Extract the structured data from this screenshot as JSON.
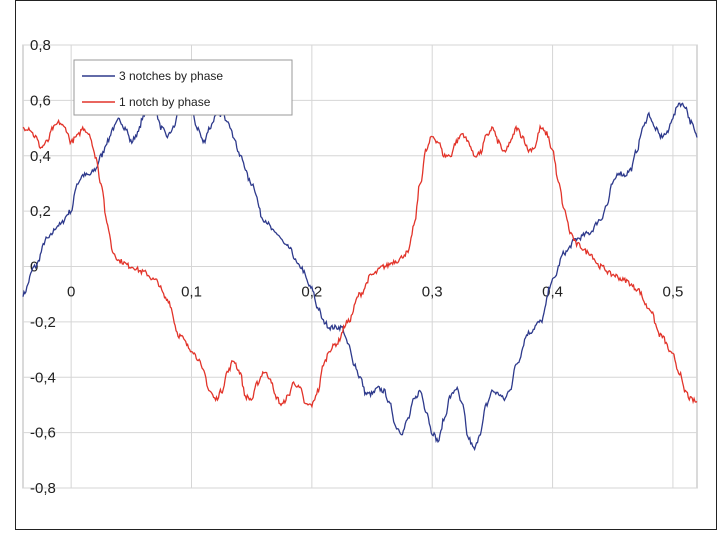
{
  "chart_data": {
    "type": "line",
    "title": "",
    "xlabel": "",
    "ylabel": "",
    "xlim": [
      -0.04,
      0.52
    ],
    "ylim": [
      -0.8,
      0.8
    ],
    "grid": true,
    "legend_position": "top-left",
    "x_ticks": [
      "0",
      "0,1",
      "0,2",
      "0,3",
      "0,4",
      "0,5"
    ],
    "x_tick_values": [
      0,
      0.1,
      0.2,
      0.3,
      0.4,
      0.5
    ],
    "y_ticks": [
      "0,8",
      "0,6",
      "0,4",
      "0,2",
      "0",
      "-0,2",
      "-0,4",
      "-0,6",
      "-0,8"
    ],
    "y_tick_values": [
      0.8,
      0.6,
      0.4,
      0.2,
      0,
      -0.2,
      -0.4,
      -0.6,
      -0.8
    ],
    "series": [
      {
        "name": "3 notches by phase",
        "color": "#2e3a8c",
        "x": [
          -0.04,
          -0.03,
          -0.02,
          -0.01,
          0.0,
          0.005,
          0.01,
          0.015,
          0.02,
          0.025,
          0.03,
          0.035,
          0.04,
          0.045,
          0.05,
          0.055,
          0.06,
          0.065,
          0.07,
          0.075,
          0.08,
          0.085,
          0.09,
          0.095,
          0.1,
          0.105,
          0.11,
          0.115,
          0.12,
          0.125,
          0.13,
          0.135,
          0.14,
          0.15,
          0.16,
          0.17,
          0.18,
          0.19,
          0.2,
          0.205,
          0.21,
          0.215,
          0.22,
          0.225,
          0.23,
          0.235,
          0.24,
          0.245,
          0.25,
          0.255,
          0.26,
          0.265,
          0.27,
          0.275,
          0.28,
          0.285,
          0.29,
          0.295,
          0.3,
          0.305,
          0.31,
          0.315,
          0.32,
          0.325,
          0.33,
          0.335,
          0.34,
          0.345,
          0.35,
          0.355,
          0.36,
          0.365,
          0.37,
          0.38,
          0.39,
          0.4,
          0.41,
          0.42,
          0.43,
          0.44,
          0.445,
          0.45,
          0.455,
          0.46,
          0.465,
          0.47,
          0.475,
          0.48,
          0.485,
          0.49,
          0.495,
          0.5,
          0.505,
          0.51,
          0.515,
          0.52
        ],
        "y": [
          -0.1,
          0.0,
          0.1,
          0.15,
          0.2,
          0.3,
          0.33,
          0.33,
          0.35,
          0.4,
          0.45,
          0.5,
          0.53,
          0.5,
          0.45,
          0.48,
          0.54,
          0.58,
          0.56,
          0.5,
          0.47,
          0.5,
          0.57,
          0.58,
          0.56,
          0.5,
          0.45,
          0.5,
          0.54,
          0.55,
          0.53,
          0.47,
          0.4,
          0.3,
          0.17,
          0.12,
          0.07,
          0.0,
          -0.08,
          -0.15,
          -0.2,
          -0.22,
          -0.22,
          -0.22,
          -0.28,
          -0.35,
          -0.4,
          -0.46,
          -0.46,
          -0.44,
          -0.45,
          -0.5,
          -0.58,
          -0.6,
          -0.55,
          -0.48,
          -0.45,
          -0.52,
          -0.6,
          -0.63,
          -0.55,
          -0.47,
          -0.44,
          -0.5,
          -0.62,
          -0.66,
          -0.6,
          -0.5,
          -0.45,
          -0.46,
          -0.48,
          -0.44,
          -0.35,
          -0.24,
          -0.2,
          -0.05,
          0.05,
          0.1,
          0.12,
          0.17,
          0.22,
          0.3,
          0.34,
          0.33,
          0.35,
          0.42,
          0.5,
          0.55,
          0.5,
          0.47,
          0.48,
          0.54,
          0.59,
          0.58,
          0.52,
          0.47
        ]
      },
      {
        "name": "1 notch by phase",
        "color": "#e2342a",
        "x": [
          -0.04,
          -0.035,
          -0.03,
          -0.025,
          -0.02,
          -0.015,
          -0.01,
          -0.005,
          0.0,
          0.005,
          0.01,
          0.015,
          0.02,
          0.025,
          0.03,
          0.035,
          0.04,
          0.05,
          0.06,
          0.07,
          0.08,
          0.09,
          0.1,
          0.105,
          0.11,
          0.115,
          0.12,
          0.125,
          0.13,
          0.135,
          0.14,
          0.145,
          0.15,
          0.155,
          0.16,
          0.165,
          0.17,
          0.175,
          0.18,
          0.185,
          0.19,
          0.195,
          0.2,
          0.205,
          0.21,
          0.215,
          0.22,
          0.23,
          0.24,
          0.25,
          0.26,
          0.27,
          0.28,
          0.285,
          0.29,
          0.295,
          0.3,
          0.305,
          0.31,
          0.315,
          0.32,
          0.325,
          0.33,
          0.335,
          0.34,
          0.345,
          0.35,
          0.355,
          0.36,
          0.365,
          0.37,
          0.375,
          0.38,
          0.385,
          0.39,
          0.395,
          0.4,
          0.405,
          0.41,
          0.415,
          0.42,
          0.43,
          0.44,
          0.45,
          0.46,
          0.47,
          0.48,
          0.49,
          0.5,
          0.505,
          0.51,
          0.515,
          0.52
        ],
        "y": [
          0.5,
          0.5,
          0.47,
          0.43,
          0.45,
          0.5,
          0.52,
          0.5,
          0.45,
          0.47,
          0.5,
          0.48,
          0.4,
          0.3,
          0.15,
          0.05,
          0.02,
          0.0,
          -0.02,
          -0.05,
          -0.12,
          -0.25,
          -0.3,
          -0.33,
          -0.38,
          -0.45,
          -0.48,
          -0.45,
          -0.38,
          -0.34,
          -0.38,
          -0.47,
          -0.48,
          -0.42,
          -0.38,
          -0.4,
          -0.47,
          -0.5,
          -0.47,
          -0.42,
          -0.44,
          -0.5,
          -0.5,
          -0.45,
          -0.35,
          -0.3,
          -0.28,
          -0.2,
          -0.1,
          -0.03,
          0.0,
          0.02,
          0.05,
          0.15,
          0.3,
          0.42,
          0.47,
          0.45,
          0.4,
          0.4,
          0.45,
          0.48,
          0.45,
          0.4,
          0.41,
          0.47,
          0.5,
          0.45,
          0.41,
          0.45,
          0.5,
          0.47,
          0.42,
          0.43,
          0.5,
          0.48,
          0.42,
          0.3,
          0.2,
          0.12,
          0.08,
          0.05,
          0.0,
          -0.03,
          -0.05,
          -0.08,
          -0.15,
          -0.25,
          -0.32,
          -0.38,
          -0.45,
          -0.48,
          -0.49
        ]
      }
    ]
  }
}
